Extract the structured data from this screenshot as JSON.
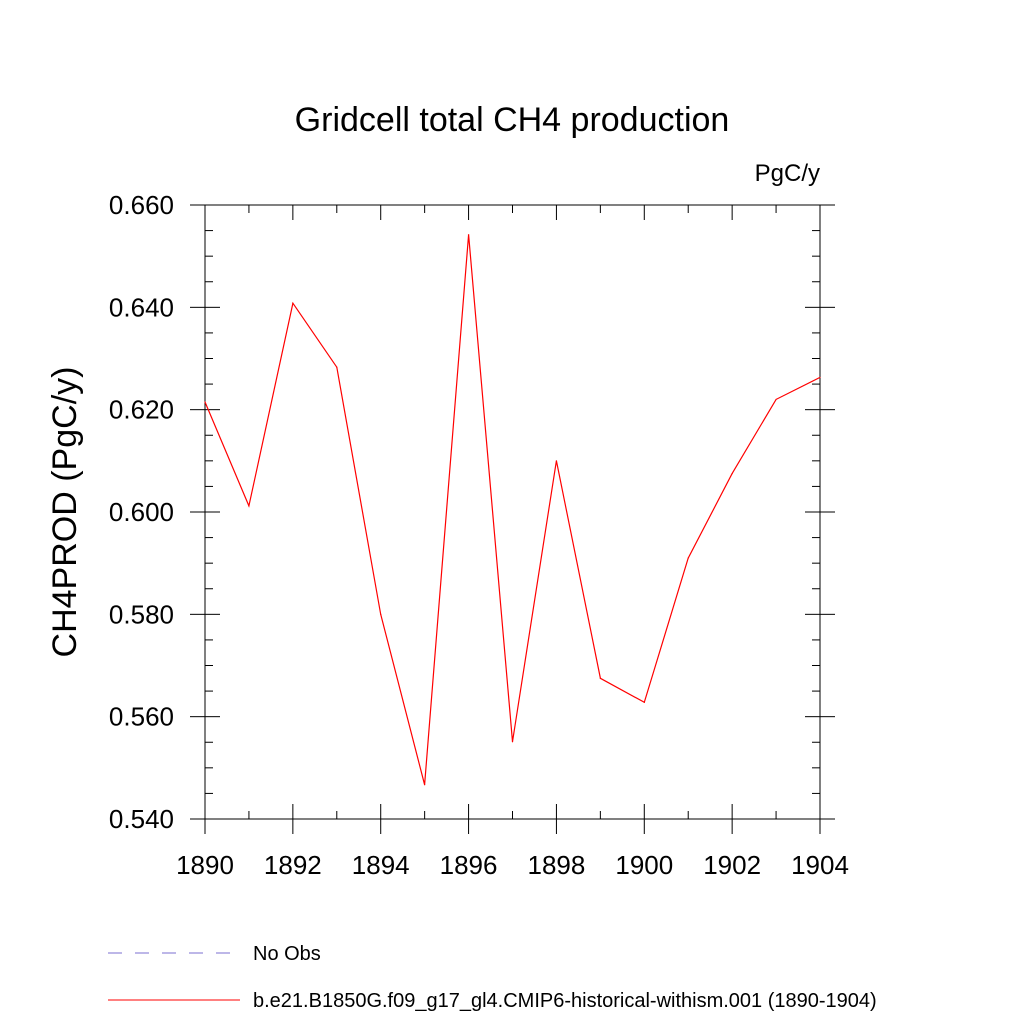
{
  "chart_data": {
    "type": "line",
    "title": "Gridcell total CH4 production",
    "units_label": "PgC/y",
    "ylabel": "CH4PROD  (PgC/y)",
    "xlabel": "",
    "xlim": [
      1890,
      1904
    ],
    "ylim": [
      0.54,
      0.66
    ],
    "x_ticks": [
      1890,
      1892,
      1894,
      1896,
      1898,
      1900,
      1902,
      1904
    ],
    "x_tick_labels": [
      "1890",
      "1892",
      "1894",
      "1896",
      "1898",
      "1900",
      "1902",
      "1904"
    ],
    "y_ticks": [
      0.54,
      0.56,
      0.58,
      0.6,
      0.62,
      0.64,
      0.66
    ],
    "y_tick_labels": [
      "0.540",
      "0.560",
      "0.580",
      "0.600",
      "0.620",
      "0.640",
      "0.660"
    ],
    "grid": false,
    "legend_position": "bottom",
    "series": [
      {
        "name": "b.e21.B1850G.f09_g17_gl4.CMIP6-historical-withism.001 (1890-1904)",
        "color": "#ff0000",
        "style": "solid",
        "x": [
          1890,
          1891,
          1892,
          1893,
          1894,
          1895,
          1896,
          1897,
          1898,
          1899,
          1900,
          1901,
          1902,
          1903,
          1904
        ],
        "y": [
          0.6215,
          0.6012,
          0.6408,
          0.6283,
          0.58,
          0.5467,
          0.6542,
          0.5551,
          0.61,
          0.5675,
          0.5628,
          0.591,
          0.6075,
          0.622,
          0.6263
        ]
      }
    ],
    "legend": [
      {
        "label": "No Obs",
        "color": "#7b6fd0",
        "style": "dashed"
      },
      {
        "label": "b.e21.B1850G.f09_g17_gl4.CMIP6-historical-withism.001 (1890-1904)",
        "color": "#ff0000",
        "style": "solid"
      }
    ]
  }
}
